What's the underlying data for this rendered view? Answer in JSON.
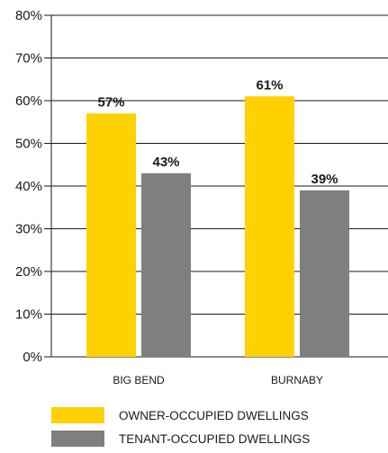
{
  "chart_data": {
    "type": "bar",
    "categories": [
      "BIG BEND",
      "BURNABY"
    ],
    "series": [
      {
        "name": "OWNER-OCCUPIED DWELLINGS",
        "values": [
          57,
          61
        ],
        "labels": [
          "57%",
          "61%"
        ],
        "color": "#FFD100"
      },
      {
        "name": "TENANT-OCCUPIED DWELLINGS",
        "values": [
          43,
          39
        ],
        "labels": [
          "43%",
          "39%"
        ],
        "color": "#7F7F81"
      }
    ],
    "ylim": [
      0,
      80
    ],
    "yticks": [
      0,
      10,
      20,
      30,
      40,
      50,
      60,
      70,
      80
    ],
    "ytick_labels": [
      "0%",
      "10%",
      "20%",
      "30%",
      "40%",
      "50%",
      "60%",
      "70%",
      "80%"
    ],
    "grid": true,
    "legend_position": "bottom-left"
  }
}
